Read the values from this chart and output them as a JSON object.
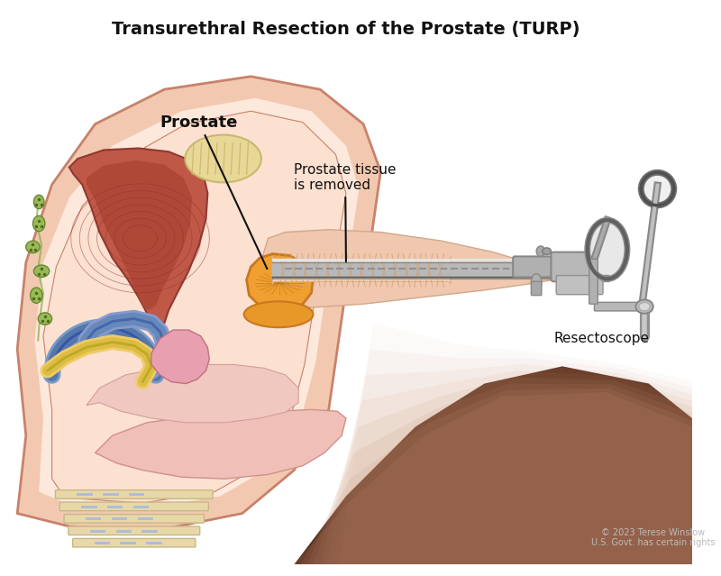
{
  "title": "Transurethral Resection of the Prostate (TURP)",
  "title_fontsize": 14,
  "title_fontweight": "bold",
  "title_color": "#111111",
  "background_color": "#ffffff",
  "label_prostate": "Prostate",
  "label_tissue": "Prostate tissue\nis removed",
  "label_resectoscope": "Resectoscope",
  "copyright": "© 2023 Terese Winslow\nU.S. Govt. has certain rights",
  "figsize": [
    8.0,
    6.39
  ],
  "dpi": 100,
  "body_outer_color": "#f2c9b0",
  "body_outer_edge": "#c8826a",
  "body_inner_color": "#fde8dc",
  "cavity_color": "#fce0d0",
  "bladder_dark": "#b05040",
  "bladder_med": "#c86050",
  "prostate_color": "#f0a030",
  "prostate_edge": "#c87820",
  "seminal_color": "#e8d898",
  "seminal_edge": "#c8b870",
  "skin_brown": "#7a4a30",
  "skin_medium": "#c8907a",
  "skin_light": "#f0d0c0",
  "tube_light": "#d0d0d0",
  "tube_mid": "#a8a8a8",
  "tube_dark": "#686868",
  "tissue_removed_color": "#f8e0b0",
  "vessel_blue": "#5577aa",
  "vessel_yellow": "#ddbb44",
  "nerve_green": "#88aa55",
  "pink_organ": "#e8a0a8",
  "bone_color": "#e8d8a8",
  "bone_edge": "#c8b888"
}
